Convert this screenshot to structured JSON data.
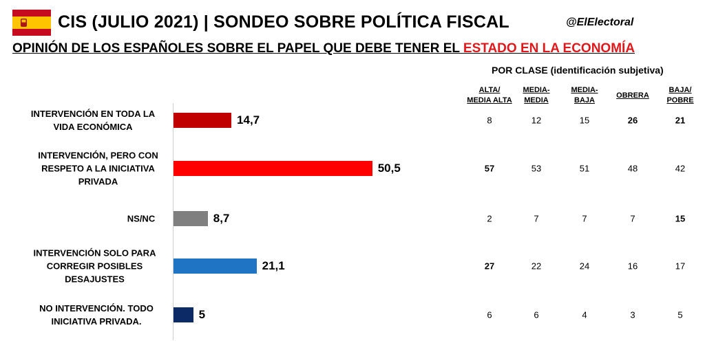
{
  "header": {
    "title": "CIS (JULIO 2021) | SONDEO SOBRE POLÍTICA FISCAL",
    "handle": "@ElElectoral",
    "subtitle_main": "OPINIÓN DE LOS ESPAÑOLES SOBRE EL PAPEL QUE DEBE TENER EL ",
    "subtitle_highlight": "ESTADO EN LA ECONOMÍA"
  },
  "colors": {
    "highlight": "#e0181b",
    "flag_red": "#c60b1e",
    "flag_yellow": "#ffc400"
  },
  "chart_data": {
    "type": "bar",
    "orientation": "horizontal",
    "categories": [
      "INTERVENCIÓN EN TODA LA VIDA ECONÓMICA",
      "INTERVENCIÓN, PERO CON RESPETO A LA INICIATIVA PRIVADA",
      "NS/NC",
      "INTERVENCIÓN SOLO PARA CORREGIR POSIBLES DESAJUSTES",
      "NO INTERVENCIÓN. TODO INICIATIVA PRIVADA."
    ],
    "values": [
      14.7,
      50.5,
      8.7,
      21.1,
      5
    ],
    "value_labels": [
      "14,7",
      "50,5",
      "8,7",
      "21,1",
      "5"
    ],
    "bar_colors": [
      "#c00000",
      "#ff0000",
      "#7f7f7f",
      "#1f75c4",
      "#0b2a66"
    ],
    "xlim": [
      0,
      60
    ]
  },
  "table": {
    "title": "POR CLASE (identificación subjetiva)",
    "columns": [
      {
        "line1": "ALTA/",
        "line2": "MEDIA ALTA"
      },
      {
        "line1": "MEDIA-",
        "line2": "MEDIA"
      },
      {
        "line1": "MEDIA-",
        "line2": "BAJA"
      },
      {
        "line1": "OBRERA",
        "line2": ""
      },
      {
        "line1": "BAJA/",
        "line2": "POBRE"
      }
    ],
    "rows": [
      [
        "8",
        "12",
        "15",
        "26",
        "21"
      ],
      [
        "57",
        "53",
        "51",
        "48",
        "42"
      ],
      [
        "2",
        "7",
        "7",
        "7",
        "15"
      ],
      [
        "27",
        "22",
        "24",
        "16",
        "17"
      ],
      [
        "6",
        "6",
        "4",
        "3",
        "5"
      ]
    ],
    "bold": [
      [
        false,
        false,
        false,
        true,
        true
      ],
      [
        true,
        false,
        false,
        false,
        false
      ],
      [
        false,
        false,
        false,
        false,
        true
      ],
      [
        true,
        false,
        false,
        false,
        false
      ],
      [
        false,
        false,
        false,
        false,
        false
      ]
    ]
  }
}
